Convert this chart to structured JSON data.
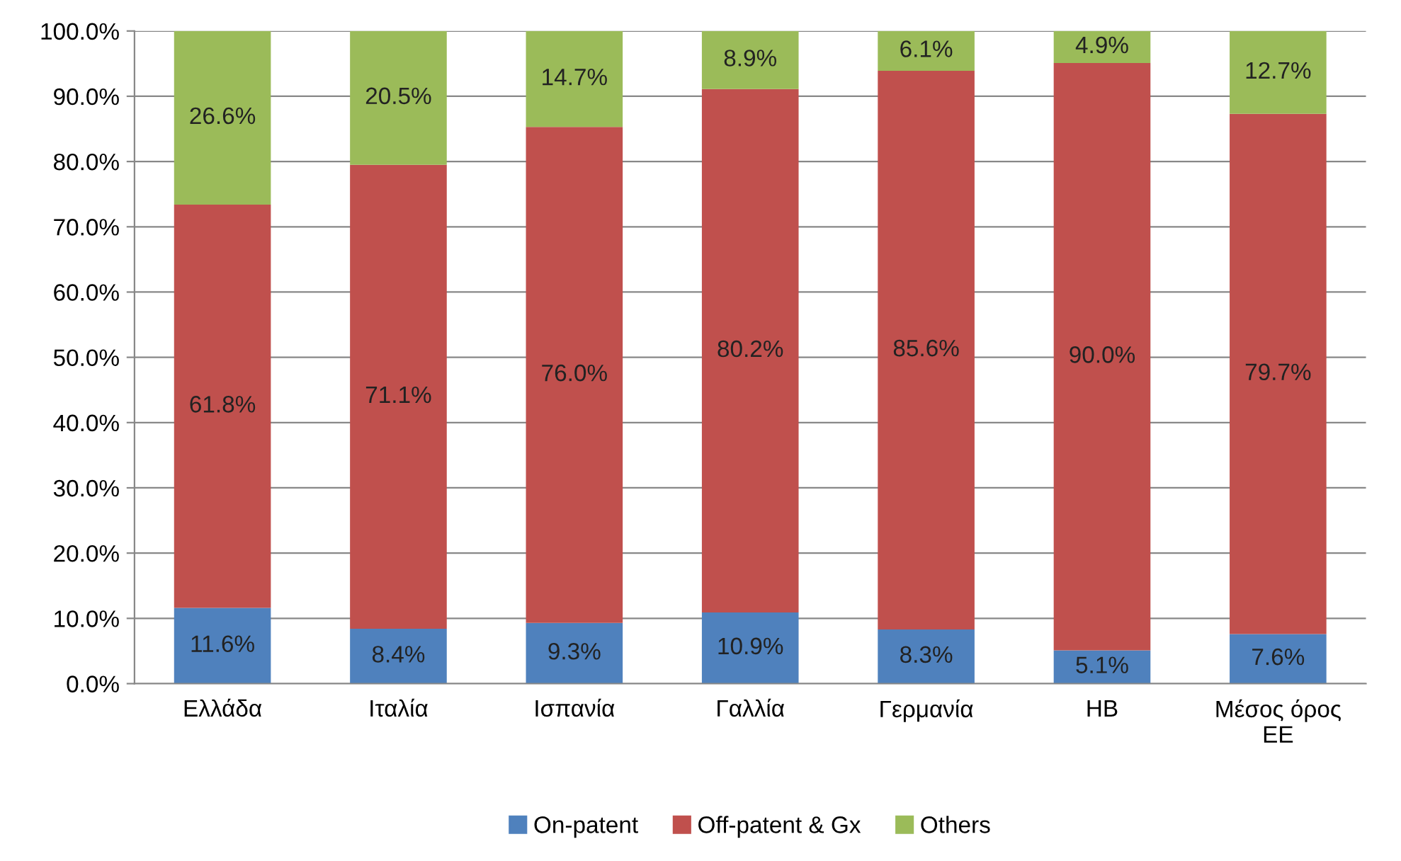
{
  "chart_data": {
    "type": "bar",
    "stacked": true,
    "categories": [
      "Ελλάδα",
      "Ιταλία",
      "Ισπανία",
      "Γαλλία",
      "Γερμανία",
      "ΗΒ",
      "Μέσος όρος\nΕΕ"
    ],
    "series": [
      {
        "name": "On-patent",
        "color": "#4f81bd",
        "values": [
          11.6,
          8.4,
          9.3,
          10.9,
          8.3,
          5.1,
          7.6
        ],
        "value_labels": [
          "11.6%",
          "8.4%",
          "9.3%",
          "10.9%",
          "8.3%",
          "5.1%",
          "7.6%"
        ]
      },
      {
        "name": "Off-patent & Gx",
        "color": "#c0504d",
        "values": [
          61.8,
          71.1,
          76.0,
          80.2,
          85.6,
          90.0,
          79.7
        ],
        "value_labels": [
          "61.8%",
          "71.1%",
          "76.0%",
          "80.2%",
          "85.6%",
          "90.0%",
          "79.7%"
        ]
      },
      {
        "name": "Others",
        "color": "#9bbb59",
        "values": [
          26.6,
          20.5,
          14.7,
          8.9,
          6.1,
          4.9,
          12.7
        ],
        "value_labels": [
          "26.6%",
          "20.5%",
          "14.7%",
          "8.9%",
          "6.1%",
          "4.9%",
          "12.7%"
        ]
      }
    ],
    "ylim": [
      0,
      100
    ],
    "yticks": [
      {
        "value": 0,
        "label": "0.0%"
      },
      {
        "value": 10,
        "label": "10.0%"
      },
      {
        "value": 20,
        "label": "20.0%"
      },
      {
        "value": 30,
        "label": "30.0%"
      },
      {
        "value": 40,
        "label": "40.0%"
      },
      {
        "value": 50,
        "label": "50.0%"
      },
      {
        "value": 60,
        "label": "60.0%"
      },
      {
        "value": 70,
        "label": "70.0%"
      },
      {
        "value": 80,
        "label": "80.0%"
      },
      {
        "value": 90,
        "label": "90.0%"
      },
      {
        "value": 100,
        "label": "100.0%"
      }
    ],
    "grid": "y",
    "legend": "bottom"
  }
}
